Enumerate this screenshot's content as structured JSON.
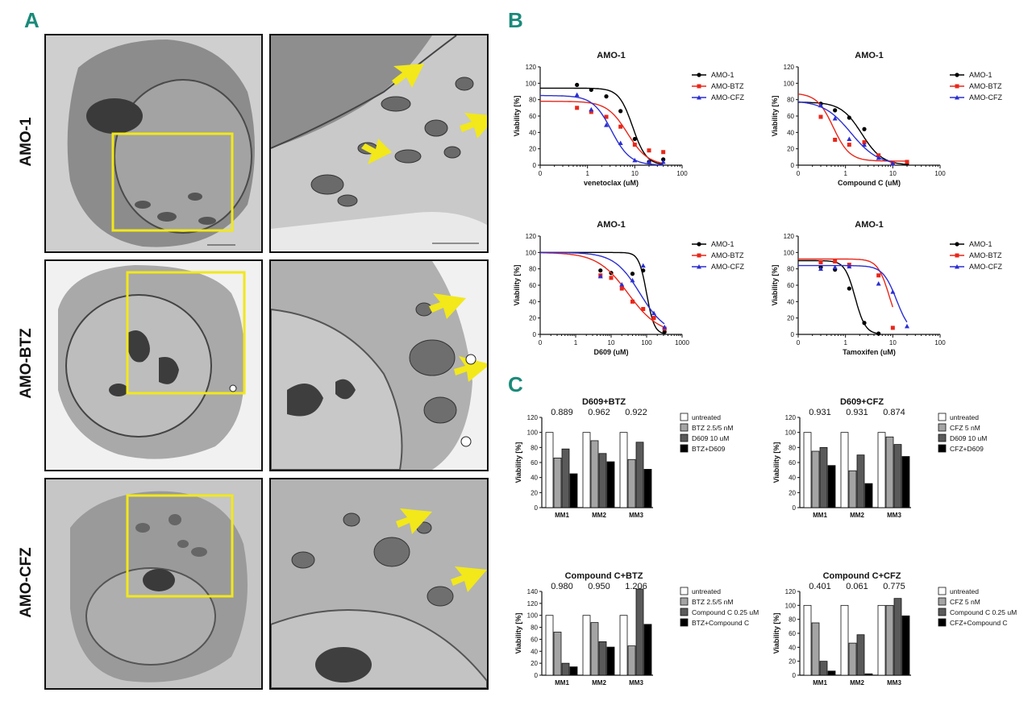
{
  "panel_A": {
    "letter": "A",
    "rows": [
      {
        "label": "AMO-1"
      },
      {
        "label": "AMO-BTZ"
      },
      {
        "label": "AMO-CFZ"
      }
    ]
  },
  "panel_B": {
    "letter": "B"
  },
  "panel_C": {
    "letter": "C"
  },
  "colors": {
    "amo1": "#000000",
    "amo_btz": "#e8271a",
    "amo_cfz": "#2b2fd1",
    "highlight": "#f2e81a",
    "panel_letter": "#1a8a7a"
  },
  "chart_data": [
    {
      "id": "b1",
      "type": "line",
      "title": "AMO-1",
      "xlabel": "venetoclax (uM)",
      "ylabel": "Viability [%]",
      "xscale": "log",
      "xticks": [
        "0",
        "1",
        "10",
        "100"
      ],
      "yticks": [
        0,
        20,
        40,
        60,
        80,
        100,
        120
      ],
      "ylim": [
        0,
        120
      ],
      "legend": "right",
      "series": [
        {
          "name": "AMO-1",
          "color": "#000000",
          "marker": "circle",
          "x": [
            0.6,
            1.2,
            2.5,
            5,
            10,
            20,
            40
          ],
          "y": [
            98,
            92,
            84,
            66,
            32,
            4,
            7
          ],
          "curve": {
            "top": 94,
            "bottom": 0,
            "ec50": 9,
            "hill": 3
          }
        },
        {
          "name": "AMO-BTZ",
          "color": "#e8271a",
          "marker": "square",
          "x": [
            0.6,
            1.2,
            2.5,
            5,
            10,
            20,
            40
          ],
          "y": [
            70,
            65,
            59,
            47,
            25,
            18,
            16
          ],
          "curve": {
            "top": 78,
            "bottom": 0,
            "ec50": 7,
            "hill": 2
          }
        },
        {
          "name": "AMO-CFZ",
          "color": "#2b2fd1",
          "marker": "triangle",
          "x": [
            0.6,
            1.2,
            2.5,
            5,
            10,
            20,
            40
          ],
          "y": [
            86,
            68,
            49,
            27,
            6,
            4,
            4
          ],
          "curve": {
            "top": 85,
            "bottom": 0,
            "ec50": 3.2,
            "hill": 2.2
          }
        }
      ]
    },
    {
      "id": "b2",
      "type": "line",
      "title": "AMO-1",
      "xlabel": "Compound C (uM)",
      "ylabel": "Viability [%]",
      "xscale": "log",
      "xticks": [
        "0",
        "1",
        "10",
        "100"
      ],
      "yticks": [
        0,
        20,
        40,
        60,
        80,
        100,
        120
      ],
      "ylim": [
        0,
        120
      ],
      "legend": "right",
      "series": [
        {
          "name": "AMO-1",
          "color": "#000000",
          "marker": "circle",
          "x": [
            0.3,
            0.6,
            1.2,
            2.5,
            5,
            10,
            20
          ],
          "y": [
            75,
            67,
            58,
            44,
            11,
            2,
            2
          ],
          "curve": {
            "top": 77,
            "bottom": 0,
            "ec50": 2.2,
            "hill": 2
          }
        },
        {
          "name": "AMO-BTZ",
          "color": "#e8271a",
          "marker": "square",
          "x": [
            0.3,
            0.6,
            1.2,
            2.5,
            5,
            10,
            20
          ],
          "y": [
            59,
            31,
            25,
            28,
            12,
            3,
            4
          ],
          "curve": {
            "top": 88,
            "bottom": 5,
            "ec50": 0.55,
            "hill": 2.5
          }
        },
        {
          "name": "AMO-CFZ",
          "color": "#2b2fd1",
          "marker": "triangle",
          "x": [
            0.3,
            0.6,
            1.2,
            2.5,
            5,
            10
          ],
          "y": [
            73,
            57,
            32,
            25,
            9,
            2
          ],
          "curve": {
            "top": 79,
            "bottom": 0,
            "ec50": 1.3,
            "hill": 1.5
          }
        }
      ]
    },
    {
      "id": "b3",
      "type": "line",
      "title": "AMO-1",
      "xlabel": "D609 (uM)",
      "ylabel": "Viability [%]",
      "xscale": "log",
      "xticks": [
        "0",
        "1",
        "10",
        "100",
        "1000"
      ],
      "yticks": [
        0,
        20,
        40,
        60,
        80,
        100,
        120
      ],
      "ylim": [
        0,
        120
      ],
      "legend": "right",
      "series": [
        {
          "name": "AMO-1",
          "color": "#000000",
          "marker": "circle",
          "x": [
            5,
            10,
            40,
            80,
            160,
            320
          ],
          "y": [
            78,
            75,
            74,
            78,
            20,
            3
          ],
          "curve": {
            "top": 100,
            "bottom": 0,
            "ec50": 100,
            "hill": 4
          }
        },
        {
          "name": "AMO-BTZ",
          "color": "#e8271a",
          "marker": "square",
          "x": [
            5,
            10,
            20,
            40,
            80,
            160,
            320
          ],
          "y": [
            72,
            69,
            56,
            40,
            31,
            20,
            7
          ],
          "curve": {
            "top": 100,
            "bottom": 0,
            "ec50": 30,
            "hill": 1
          }
        },
        {
          "name": "AMO-CFZ",
          "color": "#2b2fd1",
          "marker": "triangle",
          "x": [
            5,
            20,
            40,
            80,
            160,
            320
          ],
          "y": [
            71,
            61,
            66,
            84,
            26,
            9
          ],
          "curve": {
            "top": 100,
            "bottom": 0,
            "ec50": 65,
            "hill": 1.2
          }
        }
      ]
    },
    {
      "id": "b4",
      "type": "line",
      "title": "AMO-1",
      "xlabel": "Tamoxifen (uM)",
      "ylabel": "Viability [%]",
      "xscale": "log",
      "xticks": [
        "0",
        "1",
        "10",
        "100"
      ],
      "yticks": [
        0,
        20,
        40,
        60,
        80,
        100,
        120
      ],
      "ylim": [
        0,
        120
      ],
      "legend": "right",
      "series": [
        {
          "name": "AMO-1",
          "color": "#000000",
          "marker": "circle",
          "x": [
            0.3,
            0.6,
            1.2,
            2.5,
            5
          ],
          "y": [
            82,
            79,
            56,
            14,
            1
          ],
          "curve": {
            "top": 90,
            "bottom": 0,
            "ec50": 1.6,
            "hill": 4
          }
        },
        {
          "name": "AMO-BTZ",
          "color": "#e8271a",
          "marker": "square",
          "x": [
            0.3,
            0.6,
            1.2,
            5,
            10
          ],
          "y": [
            88,
            89,
            85,
            72,
            8
          ],
          "curve": {
            "top": 92,
            "bottom": 0,
            "ec50": 8.5,
            "hill": 3.5
          }
        },
        {
          "name": "AMO-CFZ",
          "color": "#2b2fd1",
          "marker": "triangle",
          "x": [
            0.3,
            0.6,
            1.2,
            5,
            10,
            20
          ],
          "y": [
            80,
            82,
            83,
            62,
            52,
            10
          ],
          "curve": {
            "top": 84,
            "bottom": 0,
            "ec50": 12,
            "hill": 3
          }
        }
      ]
    },
    {
      "id": "c1",
      "type": "bar",
      "title": "D609+BTZ",
      "ylabel": "Viability [%]",
      "ylim": [
        0,
        120
      ],
      "yticks": [
        0,
        20,
        40,
        60,
        80,
        100,
        120
      ],
      "categories": [
        "MM1",
        "MM2",
        "MM3"
      ],
      "annotations": [
        "0.889",
        "0.962",
        "0.922"
      ],
      "legend": "right",
      "series": [
        {
          "name": "untreated",
          "color": "#ffffff",
          "values": [
            100,
            100,
            100
          ]
        },
        {
          "name": "BTZ 2.5/5 nM",
          "color": "#a4a4a4",
          "values": [
            66,
            89,
            64
          ]
        },
        {
          "name": "D609 10 uM",
          "color": "#5a5a5a",
          "values": [
            78,
            72,
            87
          ]
        },
        {
          "name": "BTZ+D609",
          "color": "#000000",
          "values": [
            45,
            61,
            51
          ]
        }
      ]
    },
    {
      "id": "c2",
      "type": "bar",
      "title": "D609+CFZ",
      "ylabel": "Viability [%]",
      "ylim": [
        0,
        120
      ],
      "yticks": [
        0,
        20,
        40,
        60,
        80,
        100,
        120
      ],
      "categories": [
        "MM1",
        "MM2",
        "MM3"
      ],
      "annotations": [
        "0.931",
        "0.931",
        "0.874"
      ],
      "legend": "right",
      "series": [
        {
          "name": "untreated",
          "color": "#ffffff",
          "values": [
            100,
            100,
            100
          ]
        },
        {
          "name": "CFZ 5 nM",
          "color": "#a4a4a4",
          "values": [
            75,
            49,
            94
          ]
        },
        {
          "name": "D609 10 uM",
          "color": "#5a5a5a",
          "values": [
            80,
            70,
            84
          ]
        },
        {
          "name": "CFZ+D609",
          "color": "#000000",
          "values": [
            56,
            32,
            68
          ]
        }
      ]
    },
    {
      "id": "c3",
      "type": "bar",
      "title": "Compound C+BTZ",
      "ylabel": "Viability [%]",
      "ylim": [
        0,
        140
      ],
      "yticks": [
        0,
        20,
        40,
        60,
        80,
        100,
        120,
        140
      ],
      "categories": [
        "MM1",
        "MM2",
        "MM3"
      ],
      "annotations": [
        "0.980",
        "0.950",
        "1.206"
      ],
      "legend": "right",
      "series": [
        {
          "name": "untreated",
          "color": "#ffffff",
          "values": [
            100,
            100,
            100
          ]
        },
        {
          "name": "BTZ 2.5/5 nM",
          "color": "#a4a4a4",
          "values": [
            72,
            88,
            49
          ]
        },
        {
          "name": "Compound C 0.25 uM",
          "color": "#5a5a5a",
          "values": [
            20,
            56,
            144
          ]
        },
        {
          "name": "BTZ+Compound C",
          "color": "#000000",
          "values": [
            14,
            47,
            85
          ]
        }
      ]
    },
    {
      "id": "c4",
      "type": "bar",
      "title": "Compound C+CFZ",
      "ylabel": "Viability [%]",
      "ylim": [
        0,
        120
      ],
      "yticks": [
        0,
        20,
        40,
        60,
        80,
        100,
        120
      ],
      "categories": [
        "MM1",
        "MM2",
        "MM3"
      ],
      "annotations": [
        "0.401",
        "0.061",
        "0.775"
      ],
      "legend": "right",
      "series": [
        {
          "name": "untreated",
          "color": "#ffffff",
          "values": [
            100,
            100,
            100
          ]
        },
        {
          "name": "CFZ 5 nM",
          "color": "#a4a4a4",
          "values": [
            75,
            46,
            100
          ]
        },
        {
          "name": "Compound C 0.25 uM",
          "color": "#5a5a5a",
          "values": [
            20,
            58,
            110
          ]
        },
        {
          "name": "CFZ+Compound C",
          "color": "#000000",
          "values": [
            6,
            2,
            85
          ]
        }
      ]
    }
  ]
}
